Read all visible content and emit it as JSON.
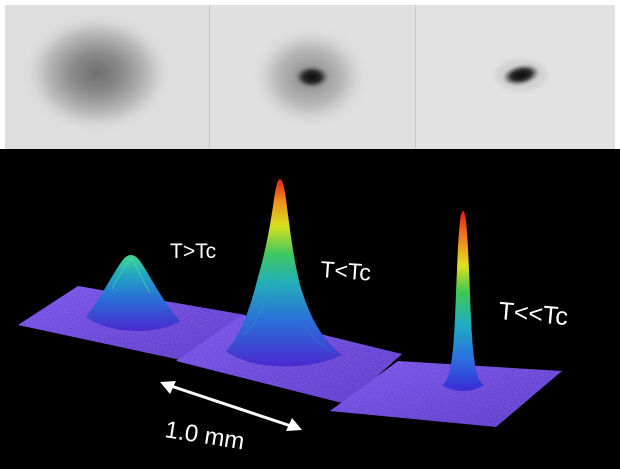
{
  "absorption_images": {
    "panels": [
      {
        "name": "thermal-cloud"
      },
      {
        "name": "partial-condensate"
      },
      {
        "name": "pure-condensate"
      }
    ]
  },
  "density_plots": {
    "labels": {
      "above_tc": "T>Tc",
      "below_tc": "T<Tc",
      "far_below_tc": "T<<Tc"
    },
    "scale_bar": {
      "label": "1.0 mm"
    }
  },
  "colors": {
    "background_bottom": "#000000",
    "surface_base": "#5a2fd8",
    "peak_red": "#e02010",
    "peak_yellow": "#f0e020",
    "mid_green": "#30c060",
    "mid_cyan": "#20a8c8",
    "text": "#ffffff"
  }
}
